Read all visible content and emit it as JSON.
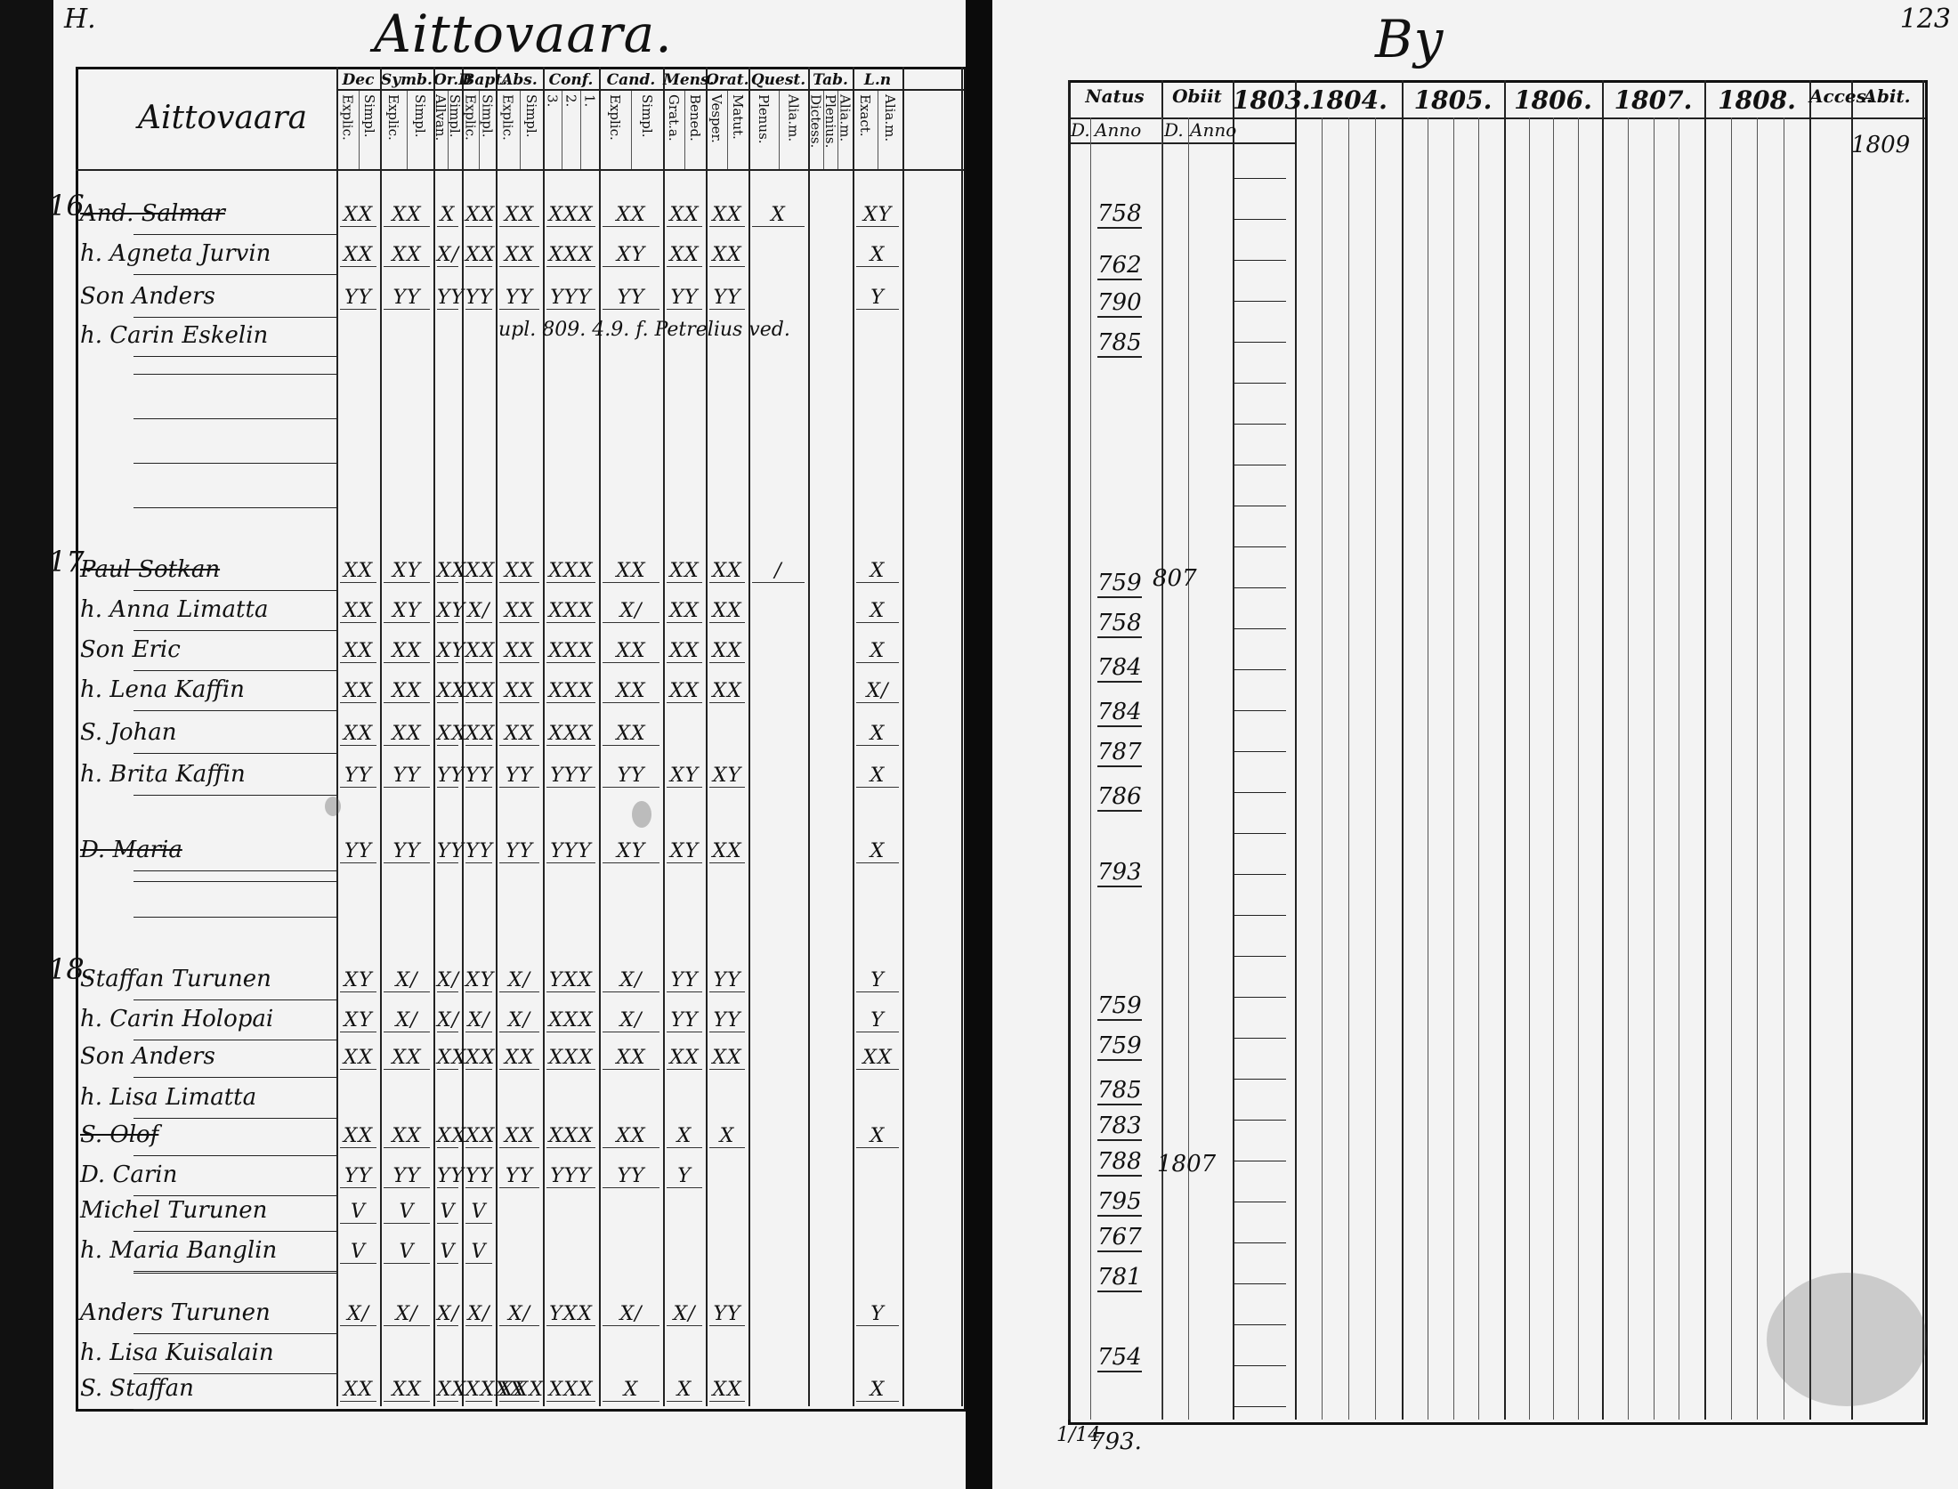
{
  "left_page": {
    "corner_number": "H.",
    "title": "Aittovaara.",
    "column_label": "Aittovaara",
    "subject_headers": [
      {
        "name": "Dec",
        "sub": [
          "Explic.",
          "Simpl."
        ]
      },
      {
        "name": "Symb.",
        "sub": [
          "Explic.",
          "Simpl."
        ]
      },
      {
        "name": "Or.D",
        "sub": [
          "Allvan.",
          "Simpl."
        ]
      },
      {
        "name": "Bapt.",
        "sub": [
          "Explic.",
          "Simpl."
        ]
      },
      {
        "name": "Abs.",
        "sub": [
          "Explic.",
          "Simpl."
        ]
      },
      {
        "name": "Conf.",
        "sub": [
          "3.",
          "2.",
          "1."
        ]
      },
      {
        "name": "Cand.",
        "sub": [
          "Explic.",
          "Simpl."
        ]
      },
      {
        "name": "Mens.",
        "sub": [
          "Grat.a.",
          "Bened."
        ]
      },
      {
        "name": "Orat.",
        "sub": [
          "Vesper.",
          "Matut."
        ]
      },
      {
        "name": "Quest.",
        "sub": [
          "Plenus.",
          "Alia.m."
        ]
      },
      {
        "name": "Tab.",
        "sub": [
          "Dictess.",
          "Plenius.",
          "Alia.m."
        ]
      },
      {
        "name": "L.n",
        "sub": [
          "Exact.",
          "Alia.m."
        ]
      }
    ],
    "households": [
      {
        "number": "16.",
        "rows": [
          {
            "name": "And. Salmar",
            "marks": [
              "XX",
              "XX",
              "X",
              "XX",
              "XX",
              "XXX",
              "XX",
              "XX",
              "XX",
              "X",
              "",
              "XY"
            ]
          },
          {
            "name": "h. Agneta Jurvin",
            "marks": [
              "XX",
              "XX",
              "X/",
              "XX",
              "XX",
              "XXX",
              "XY",
              "XX",
              "XX",
              "",
              "",
              "X"
            ]
          },
          {
            "name": "Son Anders",
            "marks": [
              "YY",
              "YY",
              "YY",
              "YY",
              "YY",
              "YYY",
              "YY",
              "YY",
              "YY",
              "",
              "",
              "Y"
            ]
          },
          {
            "name": "h. Carin Eskelin",
            "marks": []
          }
        ]
      },
      {
        "number": "17.",
        "rows": [
          {
            "name": "Paul Sotkan",
            "marks": [
              "XX",
              "XY",
              "XX",
              "XX",
              "XX",
              "XXX",
              "XX",
              "XX",
              "XX",
              "/",
              "",
              "X"
            ]
          },
          {
            "name": "h. Anna Limatta",
            "marks": [
              "XX",
              "XY",
              "XY",
              "X/",
              "XX",
              "XXX",
              "X/",
              "XX",
              "XX",
              "",
              "",
              "X"
            ]
          },
          {
            "name": "Son Eric",
            "marks": [
              "XX",
              "XX",
              "XY",
              "XX",
              "XX",
              "XXX",
              "XX",
              "XX",
              "XX",
              "",
              "",
              "X"
            ]
          },
          {
            "name": "h. Lena Kaffin",
            "marks": [
              "XX",
              "XX",
              "XX",
              "XX",
              "XX",
              "XXX",
              "XX",
              "XX",
              "XX",
              "",
              "",
              "X/"
            ]
          },
          {
            "name": "S. Johan",
            "marks": [
              "XX",
              "XX",
              "XX",
              "XX",
              "XX",
              "XXX",
              "XX",
              "",
              "",
              "",
              "",
              "X"
            ]
          },
          {
            "name": "h. Brita Kaffin",
            "marks": [
              "YY",
              "YY",
              "YY",
              "YY",
              "YY",
              "YYY",
              "YY",
              "XY",
              "XY",
              "",
              "",
              "X"
            ]
          },
          {
            "name": "D. Maria",
            "marks": [
              "YY",
              "YY",
              "YY",
              "YY",
              "YY",
              "YYY",
              "XY",
              "XY",
              "XX",
              "",
              "",
              "X"
            ]
          }
        ]
      },
      {
        "number": "18.",
        "rows": [
          {
            "name": "Staffan Turunen",
            "marks": [
              "XY",
              "X/",
              "X/",
              "XY",
              "X/",
              "YXX",
              "X/",
              "YY",
              "YY",
              "",
              "",
              "Y"
            ]
          },
          {
            "name": "h. Carin Holopai",
            "marks": [
              "XY",
              "X/",
              "X/",
              "X/",
              "X/",
              "XXX",
              "X/",
              "YY",
              "YY",
              "",
              "",
              "Y"
            ]
          },
          {
            "name": "Son Anders",
            "marks": [
              "XX",
              "XX",
              "XX",
              "XX",
              "XX",
              "XXX",
              "XX",
              "XX",
              "XX",
              "",
              "",
              "XX"
            ]
          },
          {
            "name": "h. Lisa Limatta",
            "marks": []
          },
          {
            "name": "S. Olof",
            "marks": [
              "XX",
              "XX",
              "XX",
              "XX",
              "XX",
              "XXX",
              "XX",
              "X",
              "X",
              "",
              "",
              "X"
            ]
          },
          {
            "name": "D. Carin",
            "marks": [
              "YY",
              "YY",
              "YY",
              "YY",
              "YY",
              "YYY",
              "YY",
              "Y",
              "",
              "",
              "",
              ""
            ]
          },
          {
            "name": "Michel Turunen",
            "marks": [
              "V",
              "V",
              "V",
              "V",
              "",
              "",
              "",
              "",
              "",
              "",
              "",
              ""
            ]
          },
          {
            "name": "h. Maria Banglin",
            "marks": [
              "V",
              "V",
              "V",
              "V",
              "",
              "",
              "",
              "",
              "",
              "",
              "",
              ""
            ]
          },
          {
            "name": "Anders Turunen",
            "marks": [
              "X/",
              "X/",
              "X/",
              "X/",
              "X/",
              "YXX",
              "X/",
              "X/",
              "YY",
              "",
              "",
              "Y"
            ]
          },
          {
            "name": "h. Lisa Kuisalain",
            "marks": []
          },
          {
            "name": "S. Staffan",
            "marks": [
              "XX",
              "XX",
              "XX",
              "XXXX",
              "XXX",
              "XXX",
              "X",
              "X",
              "XX",
              "",
              "",
              "X"
            ]
          }
        ]
      }
    ],
    "inline_note": "upl. 809. 4.9. f. Petrelius ved."
  },
  "right_page": {
    "corner_number": "123",
    "title": "By",
    "col_headers": [
      "Natus",
      "Obiit",
      "1803.",
      "1804.",
      "1805.",
      "1806.",
      "1807.",
      "1808.",
      "Acces.",
      "Abit."
    ],
    "sub_headers": [
      "D.",
      "Anno",
      "D.",
      "Anno"
    ],
    "abit_year": "1809",
    "birth_years": [
      "758",
      "762",
      "790",
      "785",
      "759",
      "758",
      "784",
      "784",
      "787",
      "786",
      "793",
      "759",
      "759",
      "785",
      "783",
      "788",
      "795",
      "767",
      "781",
      "754"
    ],
    "death_years": [
      "807",
      "1807"
    ],
    "foot_date": "1/14",
    "foot_year": "793."
  }
}
